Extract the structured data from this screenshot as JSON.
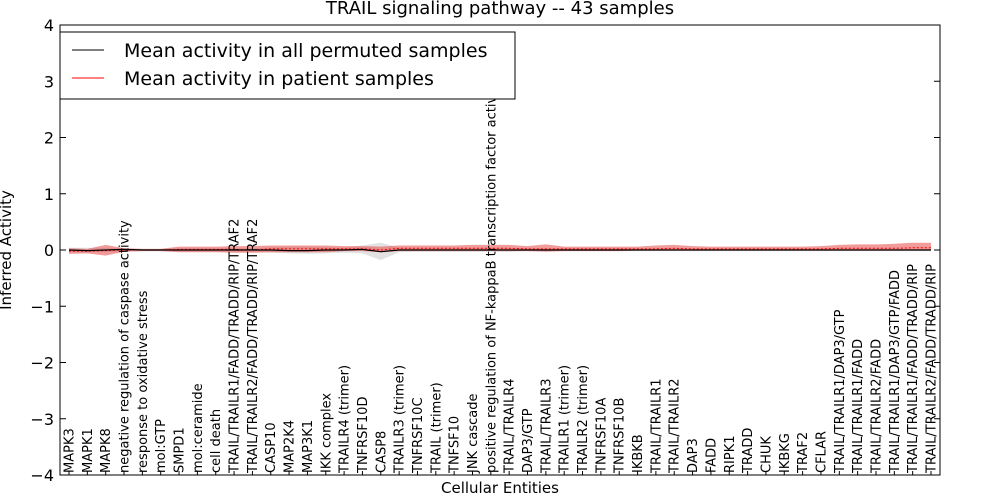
{
  "chart_data": {
    "type": "line",
    "title": "TRAIL signaling pathway -- 43 samples",
    "xlabel": "Cellular Entities",
    "ylabel": "Inferred Activity",
    "ylim": [
      -4,
      4
    ],
    "yticks": [
      "4",
      "3",
      "2",
      "1",
      "0",
      "−1",
      "−2",
      "−3",
      "−4"
    ],
    "legend": {
      "position": "top-left",
      "entries": [
        {
          "label": "Mean activity in all permuted samples",
          "color": "#000000"
        },
        {
          "label": "Mean activity in patient samples",
          "color": "#ff0000"
        }
      ]
    },
    "categories": [
      "MAPK3",
      "MAPK1",
      "MAPK8",
      "negative regulation of caspase activity",
      "response to oxidative stress",
      "mol:GTP",
      "SMPD1",
      "mol:ceramide",
      "cell death",
      "TRAIL/TRAILR1/FADD/TRADD/RIP/TRAF2",
      "TRAIL/TRAILR2/FADD/TRADD/RIP/TRAF2",
      "CASP10",
      "MAP2K4",
      "MAP3K1",
      "IKK complex",
      "TRAILR4 (trimer)",
      "TNFRSF10D",
      "CASP8",
      "TRAILR3 (trimer)",
      "TNFRSF10C",
      "TRAIL (trimer)",
      "TNFSF10",
      "JNK cascade",
      "positive regulation of NF-kappaB transcription factor activity",
      "TRAIL/TRAILR4",
      "DAP3/GTP",
      "TRAIL/TRAILR3",
      "TRAILR1 (trimer)",
      "TRAILR2 (trimer)",
      "TNFRSF10A",
      "TNFRSF10B",
      "IKBKB",
      "TRAIL/TRAILR1",
      "TRAIL/TRAILR2",
      "DAP3",
      "FADD",
      "RIPK1",
      "TRADD",
      "CHUK",
      "IKBKG",
      "TRAF2",
      "CFLAR",
      "TRAIL/TRAILR1/DAP3/GTP",
      "TRAIL/TRAILR1/FADD",
      "TRAIL/TRAILR2/FADD",
      "TRAIL/TRAILR1/DAP3/GTP/FADD",
      "TRAIL/TRAILR1/FADD/TRADD/RIP",
      "TRAIL/TRAILR2/FADD/TRADD/RIP"
    ],
    "series": [
      {
        "name": "Mean activity in all permuted samples",
        "color": "#000000",
        "values": [
          0,
          -0.01,
          0,
          0.01,
          0,
          0,
          0,
          0,
          0,
          0,
          0,
          0,
          -0.01,
          -0.01,
          0,
          0,
          0.01,
          -0.03,
          0,
          0,
          0,
          0,
          0,
          0,
          0,
          0,
          0,
          0,
          0,
          0,
          0,
          0,
          0,
          0,
          0,
          0,
          0,
          0,
          0,
          0,
          0,
          0,
          0,
          0,
          0,
          0,
          0,
          0
        ],
        "band_lower": [
          -0.04,
          -0.04,
          -0.04,
          -0.03,
          -0.02,
          -0.02,
          -0.03,
          -0.03,
          -0.03,
          -0.03,
          -0.03,
          -0.05,
          -0.06,
          -0.07,
          -0.06,
          -0.05,
          -0.06,
          -0.18,
          -0.04,
          -0.03,
          -0.03,
          -0.03,
          -0.03,
          -0.03,
          -0.03,
          -0.02,
          -0.02,
          -0.02,
          -0.02,
          -0.02,
          -0.02,
          -0.02,
          -0.02,
          -0.02,
          -0.02,
          -0.02,
          -0.02,
          -0.02,
          -0.02,
          -0.02,
          -0.02,
          -0.02,
          -0.02,
          -0.02,
          -0.02,
          -0.02,
          -0.02,
          -0.02
        ],
        "band_upper": [
          0.04,
          0.04,
          0.04,
          0.03,
          0.02,
          0.02,
          0.03,
          0.03,
          0.03,
          0.03,
          0.03,
          0.05,
          0.06,
          0.06,
          0.05,
          0.04,
          0.08,
          0.13,
          0.04,
          0.03,
          0.03,
          0.03,
          0.03,
          0.03,
          0.03,
          0.02,
          0.02,
          0.02,
          0.02,
          0.02,
          0.02,
          0.02,
          0.02,
          0.02,
          0.02,
          0.02,
          0.02,
          0.02,
          0.02,
          0.02,
          0.02,
          0.02,
          0.02,
          0.02,
          0.02,
          0.02,
          0.02,
          0.02
        ]
      },
      {
        "name": "Mean activity in patient samples",
        "color": "#ff0000",
        "values": [
          -0.02,
          -0.02,
          -0.01,
          0,
          0,
          0,
          0.01,
          0.01,
          0.01,
          0.01,
          0,
          0.02,
          0.02,
          0.02,
          0.02,
          0.02,
          0.02,
          0,
          0.03,
          0.03,
          0.03,
          0.03,
          0.03,
          0.03,
          0.03,
          0.02,
          0.02,
          0.02,
          0.02,
          0.02,
          0.02,
          0.02,
          0.02,
          0.03,
          0.02,
          0.02,
          0.02,
          0.02,
          0.02,
          0.02,
          0.02,
          0.02,
          0.03,
          0.03,
          0.03,
          0.03,
          0.04,
          0.04
        ],
        "band_lower": [
          -0.07,
          -0.06,
          -0.1,
          -0.03,
          -0.02,
          -0.02,
          -0.04,
          -0.04,
          -0.04,
          -0.05,
          -0.05,
          -0.04,
          -0.04,
          -0.04,
          -0.04,
          -0.02,
          -0.02,
          -0.04,
          -0.02,
          -0.02,
          -0.02,
          -0.02,
          -0.02,
          -0.02,
          -0.02,
          -0.02,
          -0.03,
          -0.02,
          -0.02,
          -0.02,
          -0.02,
          -0.01,
          -0.01,
          -0.01,
          -0.01,
          -0.01,
          -0.01,
          -0.01,
          -0.01,
          -0.01,
          -0.01,
          -0.01,
          -0.01,
          -0.01,
          -0.01,
          -0.01,
          -0.01,
          -0.01
        ],
        "band_upper": [
          0.03,
          0.02,
          0.09,
          0.03,
          0.02,
          0.02,
          0.06,
          0.06,
          0.06,
          0.07,
          0.07,
          0.08,
          0.08,
          0.08,
          0.08,
          0.07,
          0.07,
          0.06,
          0.08,
          0.08,
          0.08,
          0.08,
          0.09,
          0.09,
          0.09,
          0.07,
          0.1,
          0.06,
          0.06,
          0.06,
          0.06,
          0.06,
          0.08,
          0.09,
          0.07,
          0.06,
          0.06,
          0.06,
          0.06,
          0.06,
          0.06,
          0.07,
          0.09,
          0.1,
          0.1,
          0.11,
          0.13,
          0.13
        ]
      }
    ]
  }
}
